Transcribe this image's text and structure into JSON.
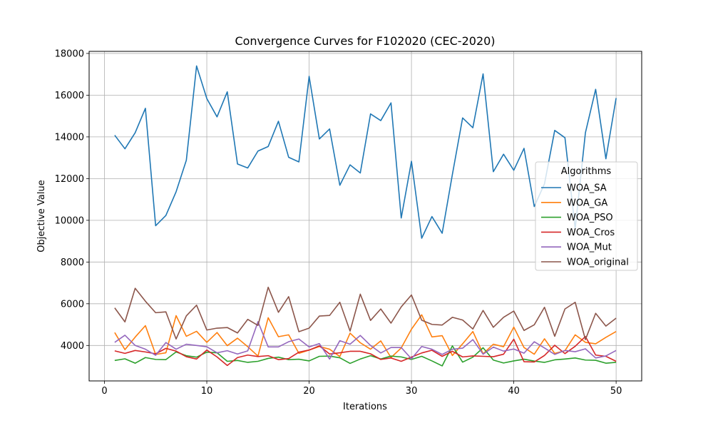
{
  "chart_data": {
    "type": "line",
    "title": "Convergence Curves for F102020 (CEC-2020)",
    "xlabel": "Iterations",
    "ylabel": "Objective Value",
    "xlim": [
      -1.5,
      52.5
    ],
    "ylim": [
      2300,
      18100
    ],
    "xticks": [
      0,
      10,
      20,
      30,
      40,
      50
    ],
    "yticks": [
      4000,
      6000,
      8000,
      10000,
      12000,
      14000,
      16000,
      18000
    ],
    "grid": true,
    "legend": {
      "title": "Algorithms",
      "placement": "center-right"
    },
    "x": [
      1,
      2,
      3,
      4,
      5,
      6,
      7,
      8,
      9,
      10,
      11,
      12,
      13,
      14,
      15,
      16,
      17,
      18,
      19,
      20,
      21,
      22,
      23,
      24,
      25,
      26,
      27,
      28,
      29,
      30,
      31,
      32,
      33,
      34,
      35,
      36,
      37,
      38,
      39,
      40,
      41,
      42,
      43,
      44,
      45,
      46,
      47,
      48,
      49,
      50
    ],
    "series": [
      {
        "name": "WOA_SA",
        "color": "#1f77b4",
        "values": [
          14080,
          13430,
          14200,
          15370,
          9740,
          10230,
          11370,
          12880,
          17400,
          15840,
          14960,
          16160,
          12700,
          12510,
          13320,
          13540,
          14750,
          13020,
          12800,
          16900,
          13900,
          14380,
          11680,
          12660,
          12270,
          15100,
          14780,
          15630,
          10110,
          12830,
          9140,
          10180,
          9380,
          12200,
          14910,
          14440,
          17020,
          12330,
          13170,
          12400,
          13450,
          10660,
          11750,
          14310,
          13960,
          9600,
          14200,
          16280,
          12950,
          15860
        ]
      },
      {
        "name": "WOA_GA",
        "color": "#ff7f0e",
        "values": [
          4620,
          3800,
          4400,
          4950,
          3570,
          3650,
          5430,
          4440,
          4680,
          4150,
          4620,
          3990,
          4350,
          3940,
          3490,
          5330,
          4420,
          4510,
          3620,
          3780,
          3950,
          3820,
          3470,
          4590,
          4130,
          3820,
          4220,
          3420,
          3880,
          4780,
          5470,
          4410,
          4470,
          3520,
          4080,
          4670,
          3600,
          4060,
          3940,
          4880,
          3900,
          3580,
          4320,
          3620,
          3750,
          4510,
          4150,
          4080,
          4390,
          4670
        ]
      },
      {
        "name": "WOA_PSO",
        "color": "#2ca02c",
        "values": [
          3280,
          3360,
          3150,
          3420,
          3330,
          3320,
          3690,
          3510,
          3440,
          3680,
          3650,
          3240,
          3280,
          3190,
          3240,
          3380,
          3440,
          3320,
          3340,
          3260,
          3480,
          3490,
          3410,
          3140,
          3350,
          3510,
          3350,
          3490,
          3450,
          3330,
          3480,
          3260,
          3020,
          3980,
          3200,
          3440,
          3890,
          3300,
          3160,
          3260,
          3340,
          3250,
          3190,
          3310,
          3350,
          3400,
          3300,
          3290,
          3150,
          3190
        ]
      },
      {
        "name": "WOA_Cros",
        "color": "#d62728",
        "values": [
          3740,
          3620,
          3760,
          3690,
          3600,
          3860,
          3730,
          3460,
          3350,
          3780,
          3450,
          3040,
          3420,
          3540,
          3470,
          3510,
          3320,
          3370,
          3680,
          3780,
          3980,
          3590,
          3650,
          3720,
          3720,
          3600,
          3330,
          3400,
          3240,
          3440,
          3640,
          3770,
          3480,
          3720,
          3450,
          3500,
          3480,
          3460,
          3580,
          4300,
          3220,
          3210,
          3520,
          4010,
          3610,
          3960,
          4430,
          3540,
          3480,
          3240
        ]
      },
      {
        "name": "WOA_Mut",
        "color": "#9467bd",
        "values": [
          4150,
          4490,
          4000,
          3820,
          3530,
          4140,
          3820,
          4060,
          4000,
          3940,
          3650,
          3750,
          3590,
          3740,
          5140,
          3930,
          3930,
          4180,
          4310,
          3930,
          4090,
          3350,
          4230,
          4060,
          4480,
          4000,
          3640,
          3900,
          3900,
          3360,
          3950,
          3820,
          3570,
          3820,
          3870,
          4280,
          3580,
          3920,
          3730,
          3830,
          3630,
          4180,
          3880,
          3570,
          3760,
          3700,
          3840,
          3400,
          3500,
          3760
        ]
      },
      {
        "name": "WOA_original",
        "color": "#8c564b",
        "values": [
          5800,
          5130,
          6740,
          6120,
          5570,
          5610,
          4310,
          5420,
          5930,
          4740,
          4830,
          4860,
          4600,
          5250,
          4960,
          6790,
          5590,
          6340,
          4660,
          4830,
          5410,
          5440,
          6070,
          4690,
          6460,
          5200,
          5750,
          5070,
          5850,
          6420,
          5210,
          5010,
          4980,
          5350,
          5220,
          4790,
          5680,
          4870,
          5350,
          5650,
          4720,
          4990,
          5830,
          4440,
          5750,
          6070,
          4280,
          5540,
          4930,
          5310
        ]
      }
    ]
  }
}
